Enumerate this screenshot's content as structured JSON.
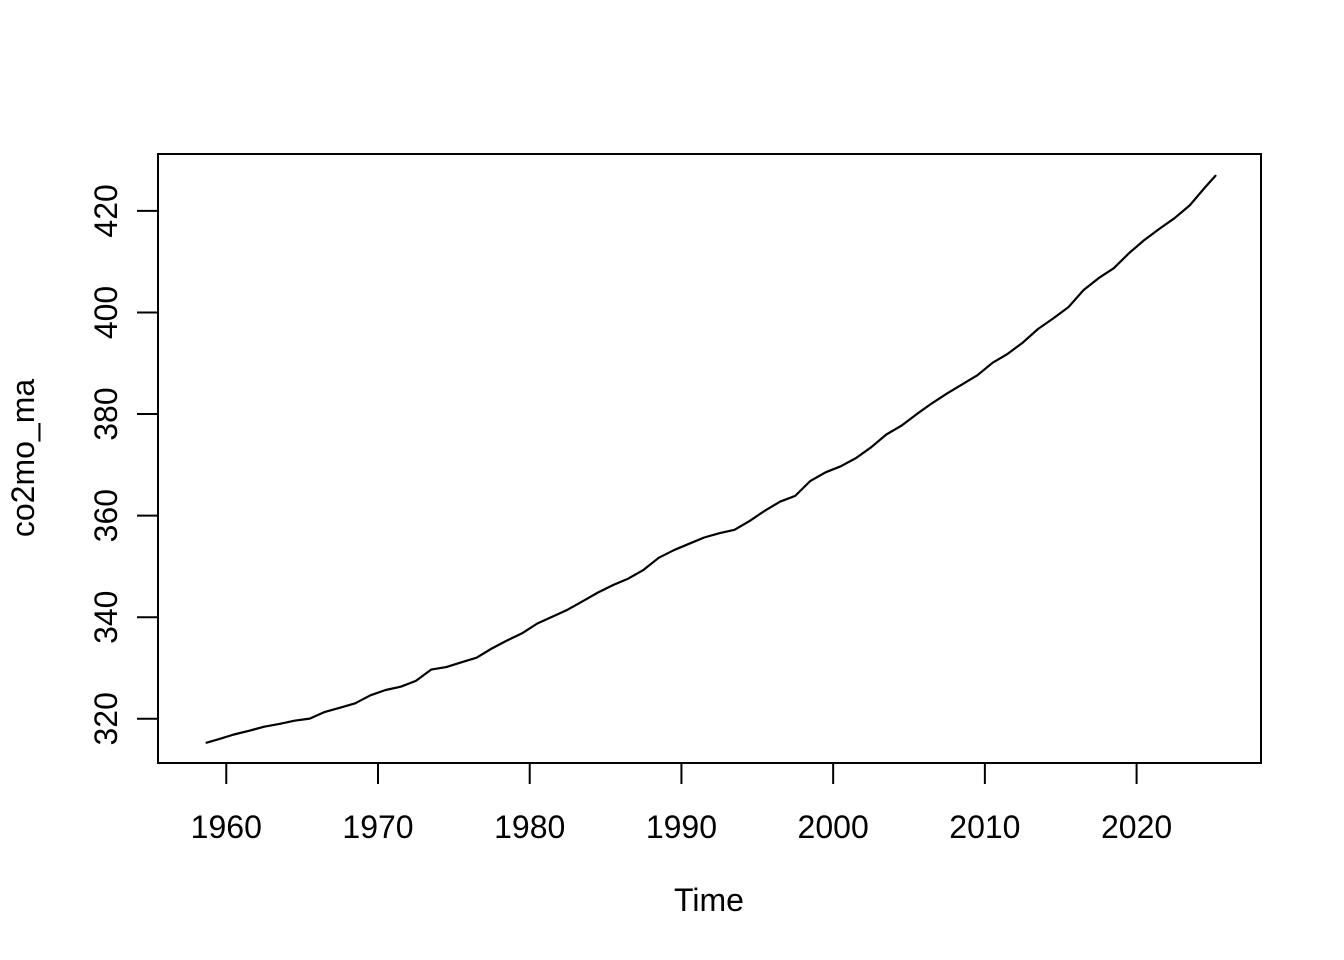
{
  "chart_data": {
    "type": "line",
    "title": "",
    "xlabel": "Time",
    "ylabel": "co2mo_ma",
    "x_ticks": [
      1960,
      1970,
      1980,
      1990,
      2000,
      2010,
      2020
    ],
    "y_ticks": [
      320,
      340,
      360,
      380,
      400,
      420
    ],
    "xlim": [
      1955.5,
      2028.2
    ],
    "ylim": [
      311.3,
      431.2
    ],
    "grid": false,
    "legend_position": "none",
    "line_color": "#000000",
    "background_color": "#ffffff",
    "series": [
      {
        "name": "co2mo_ma",
        "color": "#000000",
        "x": [
          1958.7,
          1959.5,
          1960.5,
          1961.5,
          1962.5,
          1963.5,
          1964.5,
          1965.5,
          1966.5,
          1967.5,
          1968.5,
          1969.5,
          1970.5,
          1971.5,
          1972.5,
          1973.5,
          1974.5,
          1975.5,
          1976.5,
          1977.5,
          1978.5,
          1979.5,
          1980.5,
          1981.5,
          1982.5,
          1983.5,
          1984.5,
          1985.5,
          1986.5,
          1987.5,
          1988.5,
          1989.5,
          1990.5,
          1991.5,
          1992.5,
          1993.5,
          1994.5,
          1995.5,
          1996.5,
          1997.5,
          1998.5,
          1999.5,
          2000.5,
          2001.5,
          2002.5,
          2003.5,
          2004.5,
          2005.5,
          2006.5,
          2007.5,
          2008.5,
          2009.5,
          2010.5,
          2011.5,
          2012.5,
          2013.5,
          2014.5,
          2015.5,
          2016.5,
          2017.5,
          2018.5,
          2019.5,
          2020.5,
          2021.5,
          2022.5,
          2023.5,
          2024.5,
          2025.2
        ],
        "y": [
          315.3,
          315.98,
          316.91,
          317.64,
          318.45,
          318.99,
          319.62,
          320.04,
          321.37,
          322.18,
          323.05,
          324.62,
          325.68,
          326.32,
          327.46,
          329.68,
          330.19,
          331.12,
          332.03,
          333.84,
          335.41,
          336.84,
          338.76,
          340.12,
          341.48,
          343.15,
          344.87,
          346.35,
          347.61,
          349.31,
          351.69,
          353.2,
          354.45,
          355.7,
          356.54,
          357.21,
          358.96,
          360.97,
          362.74,
          363.88,
          366.84,
          368.54,
          369.71,
          371.32,
          373.45,
          375.98,
          377.7,
          379.98,
          382.09,
          384.02,
          385.83,
          387.64,
          390.1,
          391.85,
          394.06,
          396.74,
          398.81,
          401.01,
          404.41,
          406.76,
          408.72,
          411.66,
          414.24,
          416.45,
          418.56,
          421.08,
          424.61,
          426.9
        ]
      }
    ]
  }
}
